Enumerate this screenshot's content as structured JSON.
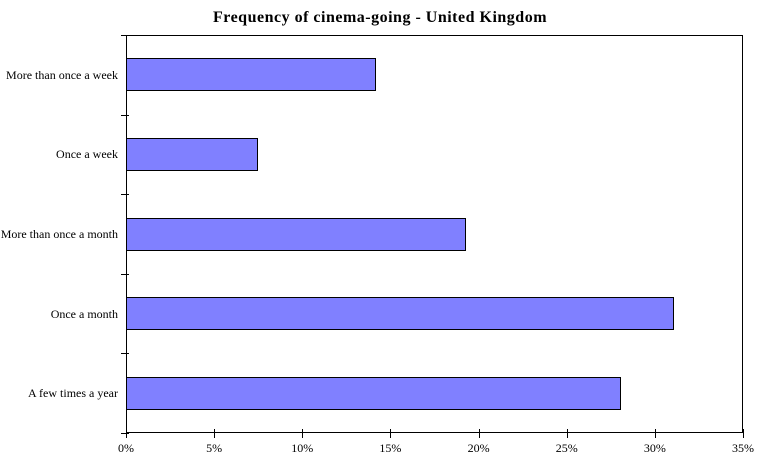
{
  "title": "Frequency of cinema-going - United Kingdom",
  "chart_data": {
    "type": "bar",
    "orientation": "horizontal",
    "title": "Frequency of cinema-going - United Kingdom",
    "categories": [
      "More than once a week",
      "Once a week",
      "More than once a month",
      "Once a month",
      "A few times a year"
    ],
    "values": [
      14.2,
      7.5,
      19.3,
      31.1,
      28.1
    ],
    "xlabel": "",
    "ylabel": "",
    "xlim": [
      0,
      35
    ],
    "x_ticks": [
      0,
      5,
      10,
      15,
      20,
      25,
      30,
      35
    ],
    "x_tick_labels": [
      "0%",
      "5%",
      "10%",
      "15%",
      "20%",
      "25%",
      "30%",
      "35%"
    ],
    "grid": false,
    "legend": "none",
    "bar_color": "#8080FF",
    "bar_border_color": "#000000",
    "axis_color": "#000000",
    "background_color": "#FFFFFF"
  }
}
